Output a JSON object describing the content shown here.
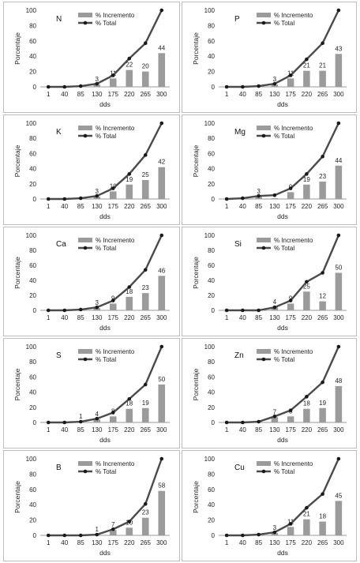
{
  "chart_data": [
    {
      "type": "bar+line",
      "title": "N",
      "categories": [
        "1",
        "40",
        "85",
        "130",
        "175",
        "220",
        "265",
        "300"
      ],
      "series": [
        {
          "name": "% Incremento",
          "type": "bar",
          "values": [
            0,
            0,
            1,
            3,
            11,
            22,
            20,
            44
          ],
          "labels": [
            "",
            "",
            "",
            "3",
            "11",
            "22",
            "20",
            "44"
          ]
        },
        {
          "name": "% Total",
          "type": "line",
          "values": [
            0,
            0,
            1,
            4,
            15,
            37,
            57,
            100
          ]
        }
      ],
      "xlabel": "dds",
      "ylabel": "Porcentaje",
      "ylim": [
        0,
        100
      ],
      "yticks": [
        "0",
        "20",
        "40",
        "60",
        "80",
        "100"
      ]
    },
    {
      "type": "bar+line",
      "title": "P",
      "categories": [
        "1",
        "40",
        "85",
        "130",
        "175",
        "220",
        "265",
        "300"
      ],
      "series": [
        {
          "name": "% Incremento",
          "type": "bar",
          "values": [
            0,
            0,
            1,
            3,
            11,
            21,
            21,
            43
          ],
          "labels": [
            "",
            "",
            "",
            "3",
            "11",
            "21",
            "21",
            "43"
          ]
        },
        {
          "name": "% Total",
          "type": "line",
          "values": [
            0,
            0,
            1,
            4,
            15,
            36,
            57,
            100
          ]
        }
      ],
      "xlabel": "dds",
      "ylabel": "Porcentaje",
      "ylim": [
        0,
        100
      ],
      "yticks": [
        "0",
        "20",
        "40",
        "60",
        "80",
        "100"
      ]
    },
    {
      "type": "bar+line",
      "title": "K",
      "categories": [
        "1",
        "40",
        "85",
        "130",
        "175",
        "220",
        "265",
        "300"
      ],
      "series": [
        {
          "name": "% Incremento",
          "type": "bar",
          "values": [
            0,
            0,
            1,
            3,
            10,
            19,
            25,
            42
          ],
          "labels": [
            "",
            "",
            "",
            "3",
            "10",
            "19",
            "25",
            "42"
          ]
        },
        {
          "name": "% Total",
          "type": "line",
          "values": [
            0,
            0,
            1,
            4,
            14,
            33,
            58,
            100
          ]
        }
      ],
      "xlabel": "dds",
      "ylabel": "Porcentaje",
      "ylim": [
        0,
        100
      ],
      "yticks": [
        "0",
        "20",
        "40",
        "60",
        "80",
        "100"
      ]
    },
    {
      "type": "bar+line",
      "title": "Mg",
      "categories": [
        "1",
        "40",
        "85",
        "130",
        "175",
        "220",
        "265",
        "300"
      ],
      "series": [
        {
          "name": "% Incremento",
          "type": "bar",
          "values": [
            0,
            1,
            3,
            1,
            9,
            19,
            23,
            44
          ],
          "labels": [
            "",
            "",
            "3",
            "",
            "9",
            "19",
            "23",
            "44"
          ]
        },
        {
          "name": "% Total",
          "type": "line",
          "values": [
            0,
            1,
            4,
            5,
            14,
            33,
            56,
            100
          ]
        }
      ],
      "xlabel": "dds",
      "ylabel": "Porcentaje",
      "ylim": [
        0,
        100
      ],
      "yticks": [
        "0",
        "20",
        "40",
        "60",
        "80",
        "100"
      ]
    },
    {
      "type": "bar+line",
      "title": "Ca",
      "categories": [
        "1",
        "40",
        "85",
        "130",
        "175",
        "220",
        "265",
        "300"
      ],
      "series": [
        {
          "name": "% Incremento",
          "type": "bar",
          "values": [
            0,
            0,
            1,
            3,
            9,
            18,
            23,
            46
          ],
          "labels": [
            "",
            "",
            "",
            "3",
            "9",
            "18",
            "23",
            "46"
          ]
        },
        {
          "name": "% Total",
          "type": "line",
          "values": [
            0,
            0,
            1,
            4,
            13,
            31,
            54,
            100
          ]
        }
      ],
      "xlabel": "dds",
      "ylabel": "Porcentaje",
      "ylim": [
        0,
        100
      ],
      "yticks": [
        "0",
        "20",
        "40",
        "60",
        "80",
        "100"
      ]
    },
    {
      "type": "bar+line",
      "title": "Si",
      "categories": [
        "1",
        "40",
        "85",
        "130",
        "175",
        "220",
        "265",
        "300"
      ],
      "series": [
        {
          "name": "% Incremento",
          "type": "bar",
          "values": [
            0,
            0,
            0,
            4,
            9,
            25,
            12,
            50
          ],
          "labels": [
            "",
            "",
            "",
            "4",
            "9",
            "25",
            "12",
            "50"
          ]
        },
        {
          "name": "% Total",
          "type": "line",
          "values": [
            0,
            0,
            0,
            4,
            13,
            38,
            50,
            100
          ]
        }
      ],
      "xlabel": "dds",
      "ylabel": "Porcentaje",
      "ylim": [
        0,
        100
      ],
      "yticks": [
        "0",
        "20",
        "40",
        "60",
        "80",
        "100"
      ]
    },
    {
      "type": "bar+line",
      "title": "S",
      "categories": [
        "1",
        "40",
        "85",
        "130",
        "175",
        "220",
        "265",
        "300"
      ],
      "series": [
        {
          "name": "% Incremento",
          "type": "bar",
          "values": [
            0,
            0,
            1,
            4,
            8,
            18,
            19,
            50
          ],
          "labels": [
            "",
            "",
            "1",
            "4",
            "8",
            "18",
            "19",
            "50"
          ]
        },
        {
          "name": "% Total",
          "type": "line",
          "values": [
            0,
            0,
            1,
            5,
            13,
            31,
            50,
            100
          ]
        }
      ],
      "xlabel": "dds",
      "ylabel": "Porcentaje",
      "ylim": [
        0,
        100
      ],
      "yticks": [
        "0",
        "20",
        "40",
        "60",
        "80",
        "100"
      ]
    },
    {
      "type": "bar+line",
      "title": "Zn",
      "categories": [
        "1",
        "40",
        "85",
        "130",
        "175",
        "220",
        "265",
        "300"
      ],
      "series": [
        {
          "name": "% Incremento",
          "type": "bar",
          "values": [
            0,
            0,
            1,
            7,
            8,
            18,
            19,
            48
          ],
          "labels": [
            "",
            "",
            "",
            "7",
            "8",
            "18",
            "19",
            "48"
          ]
        },
        {
          "name": "% Total",
          "type": "line",
          "values": [
            0,
            0,
            1,
            8,
            16,
            34,
            53,
            100
          ]
        }
      ],
      "xlabel": "dds",
      "ylabel": "Porcentaje",
      "ylim": [
        0,
        100
      ],
      "yticks": [
        "0",
        "20",
        "40",
        "60",
        "80",
        "100"
      ]
    },
    {
      "type": "bar+line",
      "title": "B",
      "categories": [
        "1",
        "40",
        "85",
        "130",
        "175",
        "220",
        "265",
        "300"
      ],
      "series": [
        {
          "name": "% Incremento",
          "type": "bar",
          "values": [
            0,
            0,
            0,
            1,
            7,
            10,
            23,
            58
          ],
          "labels": [
            "",
            "",
            "",
            "1",
            "7",
            "10",
            "23",
            "58"
          ]
        },
        {
          "name": "% Total",
          "type": "line",
          "values": [
            0,
            0,
            0,
            1,
            8,
            18,
            41,
            100
          ]
        }
      ],
      "xlabel": "dds",
      "ylabel": "Porcentaje",
      "ylim": [
        0,
        100
      ],
      "yticks": [
        "0",
        "20",
        "40",
        "60",
        "80",
        "100"
      ]
    },
    {
      "type": "bar+line",
      "title": "Cu",
      "categories": [
        "1",
        "40",
        "85",
        "130",
        "175",
        "220",
        "265",
        "300"
      ],
      "series": [
        {
          "name": "% Incremento",
          "type": "bar",
          "values": [
            0,
            0,
            1,
            3,
            11,
            21,
            18,
            45
          ],
          "labels": [
            "",
            "",
            "",
            "3",
            "11",
            "21",
            "18",
            "45"
          ]
        },
        {
          "name": "% Total",
          "type": "line",
          "values": [
            0,
            0,
            1,
            4,
            15,
            36,
            54,
            100
          ]
        }
      ],
      "xlabel": "dds",
      "ylabel": "Porcentaje",
      "ylim": [
        0,
        100
      ],
      "yticks": [
        "0",
        "20",
        "40",
        "60",
        "80",
        "100"
      ]
    }
  ]
}
